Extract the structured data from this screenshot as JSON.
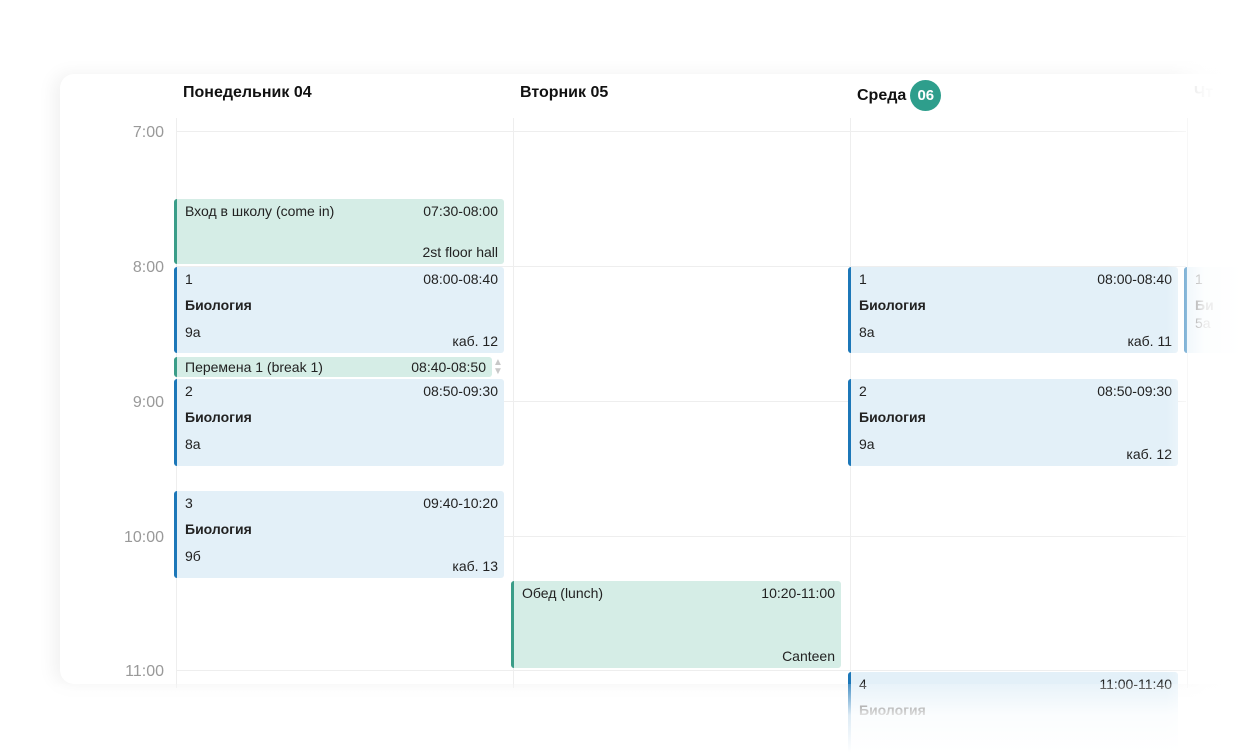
{
  "days": [
    {
      "label": "Понедельник 04"
    },
    {
      "label": "Вторник 05"
    },
    {
      "label": "Среда",
      "badge": "06"
    },
    {
      "label": "Чт"
    }
  ],
  "times": [
    "7:00",
    "8:00",
    "9:00",
    "10:00",
    "11:00"
  ],
  "events": {
    "mon_entry": {
      "title": "Вход в школу (come in)",
      "time": "07:30-08:00",
      "place": "2st floor hall"
    },
    "mon_1": {
      "num": "1",
      "time": "08:00-08:40",
      "subject": "Биология",
      "group": "9а",
      "room": "каб. 12"
    },
    "mon_break": {
      "title": "Перемена 1 (break 1)",
      "time": "08:40-08:50"
    },
    "mon_2": {
      "num": "2",
      "time": "08:50-09:30",
      "subject": "Биология",
      "group": "8а"
    },
    "mon_3": {
      "num": "3",
      "time": "09:40-10:20",
      "subject": "Биология",
      "group": "9б",
      "room": "каб. 13"
    },
    "tue_lunch": {
      "title": "Обед (lunch)",
      "time": "10:20-11:00",
      "place": "Canteen"
    },
    "wed_1": {
      "num": "1",
      "time": "08:00-08:40",
      "subject": "Биология",
      "group": "8а",
      "room": "каб. 11"
    },
    "wed_2": {
      "num": "2",
      "time": "08:50-09:30",
      "subject": "Биология",
      "group": "9а",
      "room": "каб. 12"
    },
    "wed_4": {
      "num": "4",
      "time": "11:00-11:40",
      "subject": "Биология"
    },
    "thu_1": {
      "num": "1",
      "subject": "Би",
      "group": "5а"
    }
  },
  "colors": {
    "today_badge": "#2e9e8c",
    "lesson_border": "#1c77b8",
    "service_border": "#3a9d88"
  }
}
